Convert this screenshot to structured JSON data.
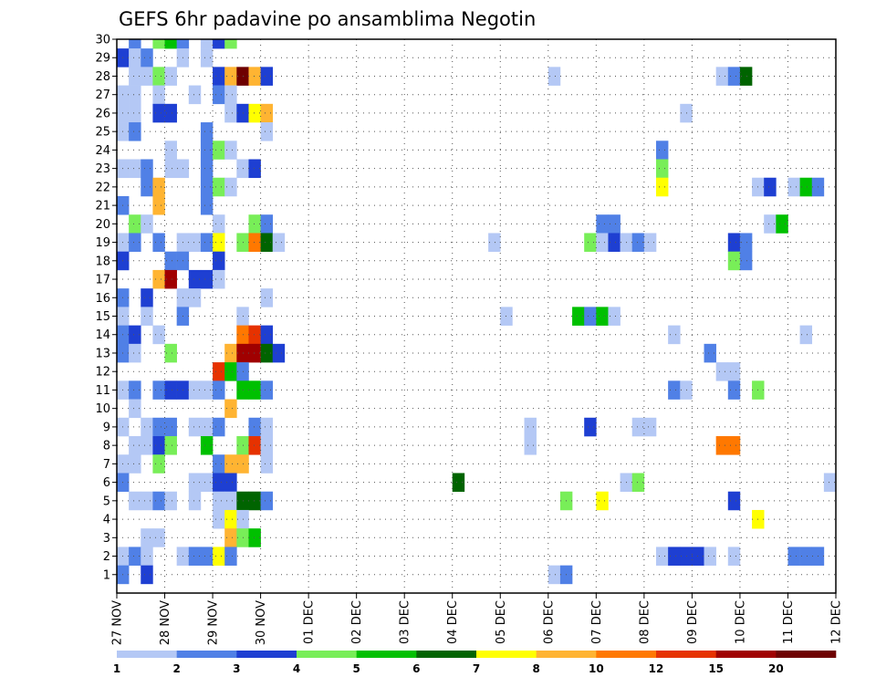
{
  "chart_data": {
    "type": "heatmap",
    "title": "GEFS 6hr padavine po ansamblima Negotin",
    "xlabel": "",
    "ylabel": "",
    "y_ticks": [
      "1",
      "2",
      "3",
      "4",
      "5",
      "6",
      "7",
      "8",
      "9",
      "10",
      "11",
      "12",
      "13",
      "14",
      "15",
      "16",
      "17",
      "18",
      "19",
      "20",
      "21",
      "22",
      "23",
      "24",
      "25",
      "26",
      "27",
      "28",
      "29",
      "30"
    ],
    "ylim": [
      0,
      30
    ],
    "x_ticks": [
      "27 NOV",
      "28 NOV",
      "29 NOV",
      "30 NOV",
      "01 DEC",
      "02 DEC",
      "03 DEC",
      "04 DEC",
      "05 DEC",
      "06 DEC",
      "07 DEC",
      "08 DEC",
      "09 DEC",
      "10 DEC",
      "11 DEC",
      "12 DEC"
    ],
    "x_steps_per_day": 4,
    "xlim": [
      0,
      60
    ],
    "colorbar": {
      "labels": [
        "1",
        "2",
        "3",
        "4",
        "5",
        "6",
        "7",
        "8",
        "10",
        "12",
        "15",
        "20"
      ],
      "colors": [
        "#b4c8f5",
        "#5080e6",
        "#1e3fd2",
        "#78ee58",
        "#00c000",
        "#006400",
        "#ffff00",
        "#ffb432",
        "#ff7800",
        "#e63200",
        "#a00000",
        "#6e0000"
      ]
    },
    "values": [
      {
        "m": 30,
        "s": [
          [
            1,
            2
          ],
          [
            3,
            4
          ],
          [
            4,
            5
          ],
          [
            5,
            2
          ],
          [
            7,
            1
          ],
          [
            8,
            3
          ],
          [
            9,
            4
          ]
        ]
      },
      {
        "m": 29,
        "s": [
          [
            0,
            3
          ],
          [
            1,
            1
          ],
          [
            2,
            2
          ],
          [
            5,
            1
          ],
          [
            7,
            1
          ]
        ]
      },
      {
        "m": 28,
        "s": [
          [
            1,
            1
          ],
          [
            2,
            1
          ],
          [
            3,
            4
          ],
          [
            4,
            1
          ],
          [
            8,
            3
          ],
          [
            9,
            8
          ],
          [
            10,
            12
          ],
          [
            11,
            8
          ],
          [
            12,
            3
          ],
          [
            36,
            1
          ],
          [
            50,
            1
          ],
          [
            51,
            2
          ],
          [
            52,
            6
          ]
        ]
      },
      {
        "m": 27,
        "s": [
          [
            0,
            1
          ],
          [
            1,
            1
          ],
          [
            3,
            1
          ],
          [
            6,
            1
          ],
          [
            8,
            2
          ],
          [
            9,
            1
          ]
        ]
      },
      {
        "m": 26,
        "s": [
          [
            0,
            1
          ],
          [
            1,
            1
          ],
          [
            3,
            3
          ],
          [
            4,
            3
          ],
          [
            9,
            1
          ],
          [
            10,
            3
          ],
          [
            11,
            7
          ],
          [
            12,
            8
          ],
          [
            47,
            1
          ]
        ]
      },
      {
        "m": 25,
        "s": [
          [
            0,
            1
          ],
          [
            1,
            2
          ],
          [
            7,
            2
          ],
          [
            12,
            1
          ]
        ]
      },
      {
        "m": 24,
        "s": [
          [
            4,
            1
          ],
          [
            7,
            2
          ],
          [
            8,
            4
          ],
          [
            9,
            1
          ],
          [
            45,
            2
          ]
        ]
      },
      {
        "m": 23,
        "s": [
          [
            0,
            1
          ],
          [
            1,
            1
          ],
          [
            2,
            2
          ],
          [
            4,
            1
          ],
          [
            5,
            1
          ],
          [
            7,
            2
          ],
          [
            10,
            1
          ],
          [
            11,
            3
          ],
          [
            45,
            4
          ]
        ]
      },
      {
        "m": 22,
        "s": [
          [
            2,
            2
          ],
          [
            3,
            8
          ],
          [
            7,
            2
          ],
          [
            8,
            4
          ],
          [
            9,
            1
          ],
          [
            45,
            7
          ],
          [
            53,
            1
          ],
          [
            54,
            3
          ],
          [
            56,
            1
          ],
          [
            57,
            5
          ],
          [
            58,
            2
          ]
        ]
      },
      {
        "m": 21,
        "s": [
          [
            0,
            2
          ],
          [
            3,
            8
          ],
          [
            7,
            2
          ]
        ]
      },
      {
        "m": 20,
        "s": [
          [
            1,
            4
          ],
          [
            2,
            1
          ],
          [
            8,
            1
          ],
          [
            11,
            4
          ],
          [
            12,
            2
          ],
          [
            40,
            2
          ],
          [
            41,
            2
          ],
          [
            54,
            1
          ],
          [
            55,
            5
          ]
        ]
      },
      {
        "m": 19,
        "s": [
          [
            0,
            1
          ],
          [
            1,
            2
          ],
          [
            3,
            2
          ],
          [
            5,
            1
          ],
          [
            6,
            1
          ],
          [
            7,
            2
          ],
          [
            8,
            7
          ],
          [
            10,
            4
          ],
          [
            11,
            9
          ],
          [
            12,
            6
          ],
          [
            13,
            1
          ],
          [
            31,
            1
          ],
          [
            39,
            4
          ],
          [
            40,
            1
          ],
          [
            41,
            3
          ],
          [
            42,
            1
          ],
          [
            43,
            2
          ],
          [
            44,
            1
          ],
          [
            51,
            3
          ],
          [
            52,
            2
          ]
        ]
      },
      {
        "m": 18,
        "s": [
          [
            0,
            3
          ],
          [
            4,
            2
          ],
          [
            5,
            2
          ],
          [
            8,
            3
          ],
          [
            51,
            4
          ],
          [
            52,
            2
          ]
        ]
      },
      {
        "m": 17,
        "s": [
          [
            3,
            8
          ],
          [
            4,
            11
          ],
          [
            6,
            3
          ],
          [
            7,
            3
          ],
          [
            8,
            1
          ]
        ]
      },
      {
        "m": 16,
        "s": [
          [
            0,
            2
          ],
          [
            2,
            3
          ],
          [
            5,
            1
          ],
          [
            6,
            1
          ],
          [
            12,
            1
          ]
        ]
      },
      {
        "m": 15,
        "s": [
          [
            0,
            1
          ],
          [
            2,
            1
          ],
          [
            5,
            2
          ],
          [
            10,
            1
          ],
          [
            32,
            1
          ],
          [
            38,
            5
          ],
          [
            39,
            2
          ],
          [
            40,
            5
          ],
          [
            41,
            1
          ]
        ]
      },
      {
        "m": 14,
        "s": [
          [
            0,
            2
          ],
          [
            1,
            3
          ],
          [
            3,
            1
          ],
          [
            10,
            9
          ],
          [
            11,
            10
          ],
          [
            12,
            3
          ],
          [
            46,
            1
          ],
          [
            57,
            1
          ]
        ]
      },
      {
        "m": 13,
        "s": [
          [
            0,
            2
          ],
          [
            1,
            1
          ],
          [
            4,
            4
          ],
          [
            9,
            8
          ],
          [
            10,
            11
          ],
          [
            11,
            11
          ],
          [
            12,
            6
          ],
          [
            13,
            3
          ],
          [
            49,
            2
          ]
        ]
      },
      {
        "m": 12,
        "s": [
          [
            8,
            10
          ],
          [
            9,
            5
          ],
          [
            10,
            2
          ],
          [
            50,
            1
          ],
          [
            51,
            1
          ]
        ]
      },
      {
        "m": 11,
        "s": [
          [
            0,
            1
          ],
          [
            1,
            2
          ],
          [
            3,
            2
          ],
          [
            4,
            3
          ],
          [
            5,
            3
          ],
          [
            6,
            1
          ],
          [
            7,
            1
          ],
          [
            8,
            2
          ],
          [
            10,
            5
          ],
          [
            11,
            5
          ],
          [
            12,
            2
          ],
          [
            46,
            2
          ],
          [
            47,
            1
          ],
          [
            51,
            2
          ],
          [
            53,
            4
          ]
        ]
      },
      {
        "m": 10,
        "s": [
          [
            1,
            1
          ],
          [
            9,
            8
          ]
        ]
      },
      {
        "m": 9,
        "s": [
          [
            0,
            1
          ],
          [
            2,
            1
          ],
          [
            3,
            2
          ],
          [
            4,
            2
          ],
          [
            6,
            1
          ],
          [
            7,
            1
          ],
          [
            8,
            2
          ],
          [
            11,
            2
          ],
          [
            12,
            1
          ],
          [
            34,
            1
          ],
          [
            39,
            3
          ],
          [
            43,
            1
          ],
          [
            44,
            1
          ]
        ]
      },
      {
        "m": 8,
        "s": [
          [
            1,
            1
          ],
          [
            2,
            1
          ],
          [
            3,
            3
          ],
          [
            4,
            4
          ],
          [
            7,
            5
          ],
          [
            10,
            4
          ],
          [
            11,
            10
          ],
          [
            12,
            1
          ],
          [
            34,
            1
          ],
          [
            50,
            9
          ],
          [
            51,
            9
          ]
        ]
      },
      {
        "m": 7,
        "s": [
          [
            0,
            1
          ],
          [
            1,
            1
          ],
          [
            3,
            4
          ],
          [
            8,
            2
          ],
          [
            9,
            8
          ],
          [
            10,
            8
          ],
          [
            12,
            1
          ]
        ]
      },
      {
        "m": 6,
        "s": [
          [
            0,
            2
          ],
          [
            6,
            1
          ],
          [
            7,
            1
          ],
          [
            8,
            3
          ],
          [
            9,
            3
          ],
          [
            28,
            6
          ],
          [
            42,
            1
          ],
          [
            43,
            4
          ],
          [
            59,
            1
          ]
        ]
      },
      {
        "m": 5,
        "s": [
          [
            1,
            1
          ],
          [
            2,
            1
          ],
          [
            3,
            2
          ],
          [
            4,
            1
          ],
          [
            6,
            1
          ],
          [
            8,
            1
          ],
          [
            9,
            1
          ],
          [
            10,
            6
          ],
          [
            11,
            6
          ],
          [
            12,
            2
          ],
          [
            37,
            4
          ],
          [
            40,
            7
          ],
          [
            51,
            3
          ]
        ]
      },
      {
        "m": 4,
        "s": [
          [
            8,
            1
          ],
          [
            9,
            7
          ],
          [
            10,
            1
          ],
          [
            53,
            7
          ]
        ]
      },
      {
        "m": 3,
        "s": [
          [
            2,
            1
          ],
          [
            3,
            1
          ],
          [
            9,
            8
          ],
          [
            10,
            4
          ],
          [
            11,
            5
          ]
        ]
      },
      {
        "m": 2,
        "s": [
          [
            0,
            1
          ],
          [
            1,
            2
          ],
          [
            2,
            1
          ],
          [
            5,
            1
          ],
          [
            6,
            2
          ],
          [
            7,
            2
          ],
          [
            8,
            7
          ],
          [
            9,
            2
          ],
          [
            45,
            1
          ],
          [
            46,
            3
          ],
          [
            47,
            3
          ],
          [
            48,
            3
          ],
          [
            49,
            1
          ],
          [
            51,
            1
          ],
          [
            56,
            2
          ],
          [
            57,
            2
          ],
          [
            58,
            2
          ]
        ]
      },
      {
        "m": 1,
        "s": [
          [
            0,
            2
          ],
          [
            2,
            3
          ],
          [
            36,
            1
          ],
          [
            37,
            2
          ]
        ]
      }
    ]
  }
}
